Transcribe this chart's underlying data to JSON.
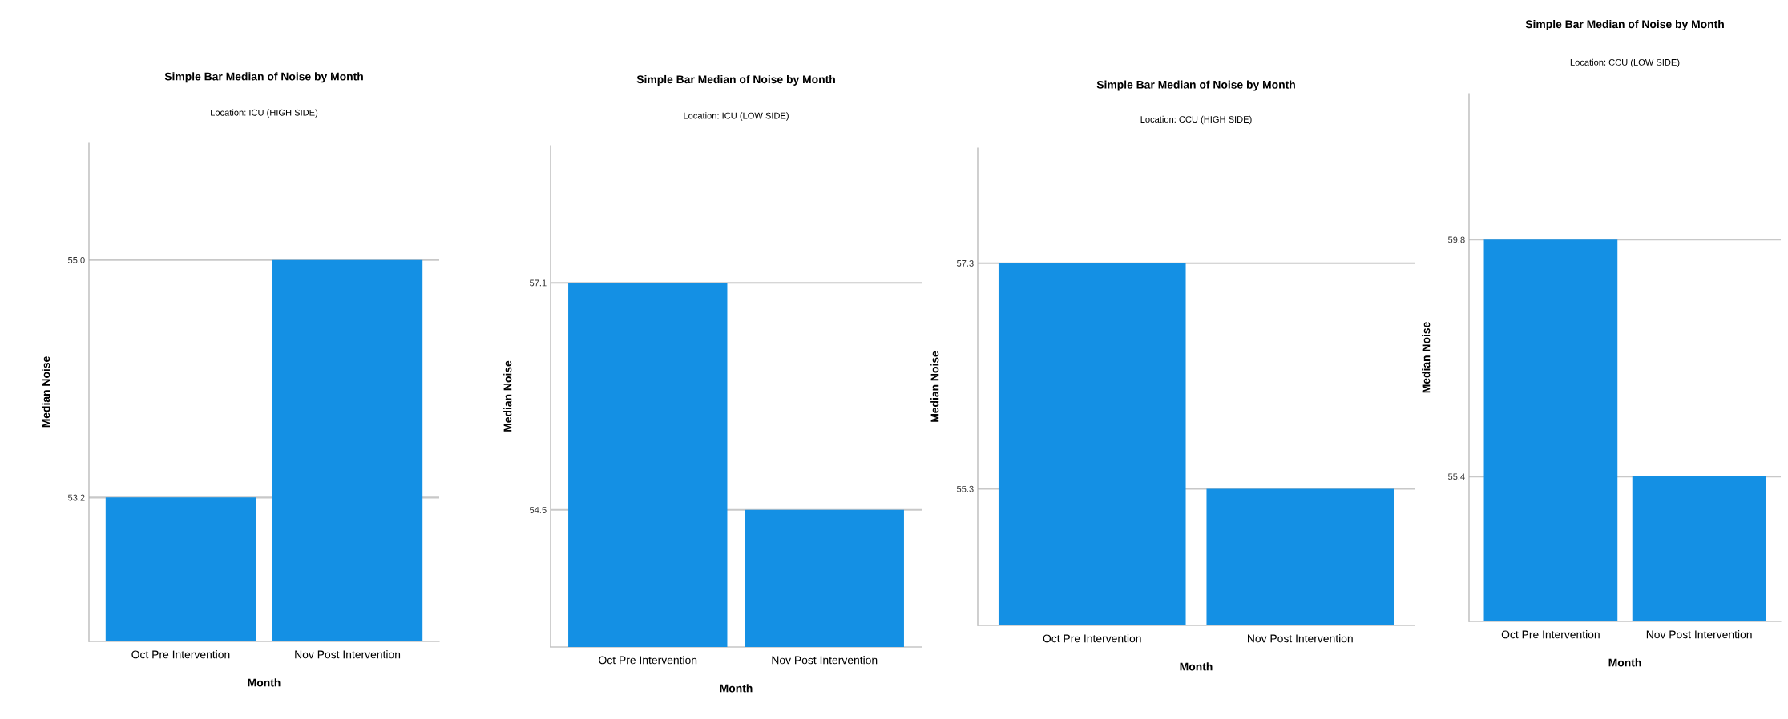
{
  "chart_data": [
    {
      "type": "bar",
      "title": "Simple Bar Median of Noise by Month",
      "subtitle": "Location: ICU (HIGH SIDE)",
      "xlabel": "Month",
      "ylabel": "Median Noise",
      "categories": [
        "Oct Pre Intervention",
        "Nov Post Intervention"
      ],
      "values": [
        53.2,
        55.0
      ],
      "color": "#1490e4",
      "ylim": [
        52.11,
        55.89
      ],
      "yticks": [
        53.2,
        {
          "value": 55,
          "label": "55.0"
        }
      ],
      "grid": "y"
    },
    {
      "type": "bar",
      "title": "Simple Bar Median of Noise by Month",
      "subtitle": "Location: ICU (LOW SIDE)",
      "xlabel": "Month",
      "ylabel": "Median Noise",
      "categories": [
        "Oct Pre Intervention",
        "Nov Post Intervention"
      ],
      "values": [
        57.1,
        54.5
      ],
      "color": "#1490e4",
      "ylim": [
        52.93,
        58.67
      ],
      "yticks": [
        54.5,
        57.1
      ],
      "grid": "y"
    },
    {
      "type": "bar",
      "title": "Simple Bar Median of Noise by Month",
      "subtitle": "Location: CCU (HIGH SIDE)",
      "xlabel": "Month",
      "ylabel": "Median Noise",
      "categories": [
        "Oct Pre Intervention",
        "Nov Post Intervention"
      ],
      "values": [
        57.3,
        55.3
      ],
      "color": "#1490e4",
      "ylim": [
        54.09,
        58.32
      ],
      "yticks": [
        55.3,
        57.3
      ],
      "grid": "y"
    },
    {
      "type": "bar",
      "title": "Simple Bar Median of Noise by Month",
      "subtitle": "Location: CCU (LOW SIDE)",
      "xlabel": "Month",
      "ylabel": "Median Noise",
      "categories": [
        "Oct Pre Intervention",
        "Nov Post Intervention"
      ],
      "values": [
        59.8,
        55.4
      ],
      "color": "#1490e4",
      "ylim": [
        52.71,
        62.51
      ],
      "yticks": [
        55.4,
        59.8
      ],
      "grid": "y"
    }
  ]
}
